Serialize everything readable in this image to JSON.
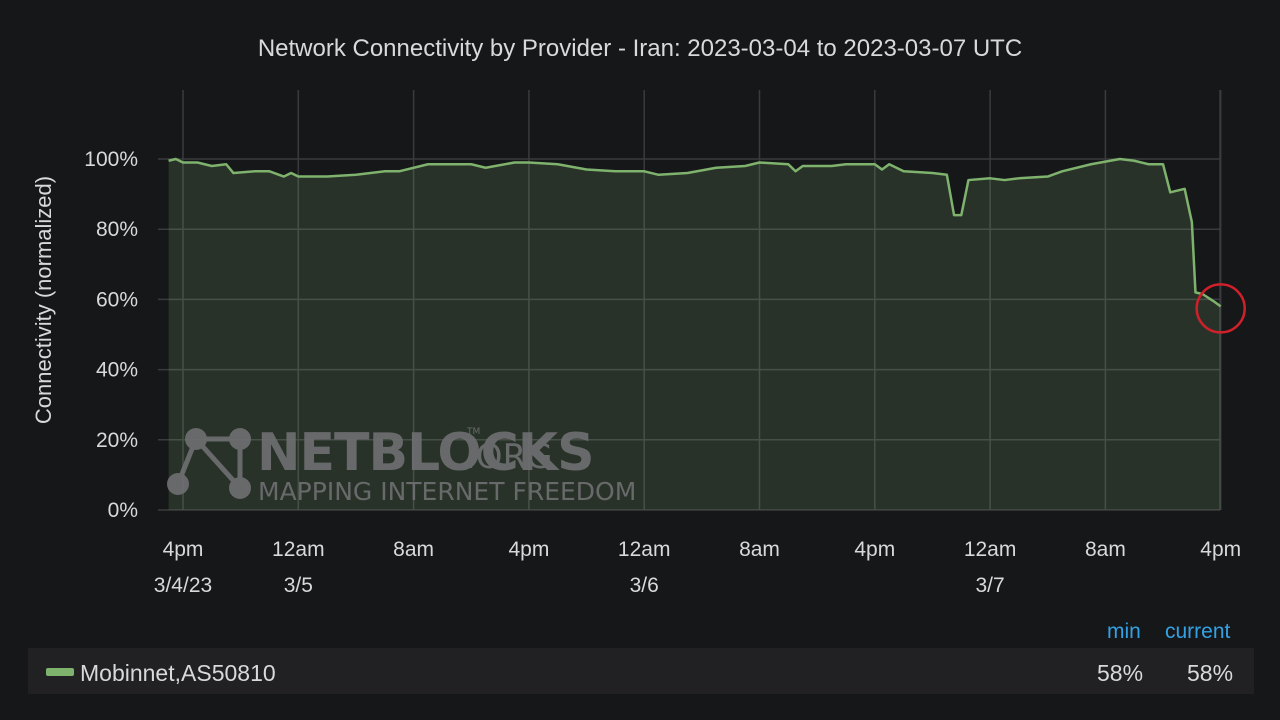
{
  "chart_data": {
    "type": "area",
    "title": "Network Connectivity by Provider - Iran: 2023-03-04 to 2023-03-07 UTC",
    "ylabel": "Connectivity (normalized)",
    "xlabel": "",
    "ylim": [
      0,
      100
    ],
    "y_ticks": [
      "100%",
      "80%",
      "60%",
      "40%",
      "20%",
      "0%"
    ],
    "x_ticks": [
      {
        "label": "4pm",
        "sublabel": "3/4/23"
      },
      {
        "label": "12am",
        "sublabel": "3/5"
      },
      {
        "label": "8am",
        "sublabel": ""
      },
      {
        "label": "4pm",
        "sublabel": ""
      },
      {
        "label": "12am",
        "sublabel": "3/6"
      },
      {
        "label": "8am",
        "sublabel": ""
      },
      {
        "label": "4pm",
        "sublabel": ""
      },
      {
        "label": "12am",
        "sublabel": "3/7"
      },
      {
        "label": "8am",
        "sublabel": ""
      },
      {
        "label": "4pm",
        "sublabel": ""
      }
    ],
    "grid": true,
    "series": [
      {
        "name": "Mobinnet,AS50810",
        "color": "#7eb26d",
        "points": [
          [
            "2023-03-04 15:00",
            99.5
          ],
          [
            "2023-03-04 15:30",
            100
          ],
          [
            "2023-03-04 16:00",
            99
          ],
          [
            "2023-03-04 17:00",
            99
          ],
          [
            "2023-03-04 18:00",
            98
          ],
          [
            "2023-03-04 19:00",
            98.5
          ],
          [
            "2023-03-04 19:30",
            96
          ],
          [
            "2023-03-04 21:00",
            96.5
          ],
          [
            "2023-03-04 22:00",
            96.5
          ],
          [
            "2023-03-04 23:00",
            95
          ],
          [
            "2023-03-04 23:30",
            96
          ],
          [
            "2023-03-05 00:00",
            95
          ],
          [
            "2023-03-05 02:00",
            95
          ],
          [
            "2023-03-05 04:00",
            95.5
          ],
          [
            "2023-03-05 06:00",
            96.5
          ],
          [
            "2023-03-05 07:00",
            96.5
          ],
          [
            "2023-03-05 09:00",
            98.5
          ],
          [
            "2023-03-05 12:00",
            98.5
          ],
          [
            "2023-03-05 13:00",
            97.5
          ],
          [
            "2023-03-05 15:00",
            99
          ],
          [
            "2023-03-05 16:00",
            99
          ],
          [
            "2023-03-05 18:00",
            98.5
          ],
          [
            "2023-03-05 20:00",
            97
          ],
          [
            "2023-03-05 22:00",
            96.5
          ],
          [
            "2023-03-06 00:00",
            96.5
          ],
          [
            "2023-03-06 01:00",
            95.5
          ],
          [
            "2023-03-06 03:00",
            96
          ],
          [
            "2023-03-06 05:00",
            97.5
          ],
          [
            "2023-03-06 07:00",
            98
          ],
          [
            "2023-03-06 08:00",
            99
          ],
          [
            "2023-03-06 10:00",
            98.5
          ],
          [
            "2023-03-06 10:30",
            96.5
          ],
          [
            "2023-03-06 11:00",
            98
          ],
          [
            "2023-03-06 13:00",
            98
          ],
          [
            "2023-03-06 14:00",
            98.5
          ],
          [
            "2023-03-06 16:00",
            98.5
          ],
          [
            "2023-03-06 16:30",
            97
          ],
          [
            "2023-03-06 17:00",
            98.5
          ],
          [
            "2023-03-06 18:00",
            96.5
          ],
          [
            "2023-03-06 20:00",
            96
          ],
          [
            "2023-03-06 21:00",
            95.5
          ],
          [
            "2023-03-06 21:30",
            84
          ],
          [
            "2023-03-06 22:00",
            84
          ],
          [
            "2023-03-06 22:30",
            94
          ],
          [
            "2023-03-07 00:00",
            94.5
          ],
          [
            "2023-03-07 01:00",
            94
          ],
          [
            "2023-03-07 02:00",
            94.5
          ],
          [
            "2023-03-07 04:00",
            95
          ],
          [
            "2023-03-07 05:00",
            96.5
          ],
          [
            "2023-03-07 07:00",
            98.5
          ],
          [
            "2023-03-07 09:00",
            100
          ],
          [
            "2023-03-07 10:00",
            99.5
          ],
          [
            "2023-03-07 11:00",
            98.5
          ],
          [
            "2023-03-07 12:00",
            98.5
          ],
          [
            "2023-03-07 12:30",
            90.5
          ],
          [
            "2023-03-07 13:30",
            91.5
          ],
          [
            "2023-03-07 14:00",
            82
          ],
          [
            "2023-03-07 14:15",
            62
          ],
          [
            "2023-03-07 14:45",
            61.5
          ],
          [
            "2023-03-07 15:30",
            59.5
          ],
          [
            "2023-03-07 16:00",
            58
          ]
        ]
      }
    ],
    "annotation": {
      "type": "circle",
      "color": "#d0202a",
      "at": [
        "2023-03-07 16:00",
        58
      ]
    }
  },
  "legend": {
    "headers": {
      "min": "min",
      "current": "current"
    },
    "items": [
      {
        "name": "Mobinnet,AS50810",
        "min": "58%",
        "current": "58%",
        "color": "#7eb26d"
      }
    ]
  },
  "watermark": {
    "brand": "NETBLOCKS",
    "domain": ".ORG",
    "trademark": "TM",
    "tagline": "MAPPING INTERNET FREEDOM"
  }
}
